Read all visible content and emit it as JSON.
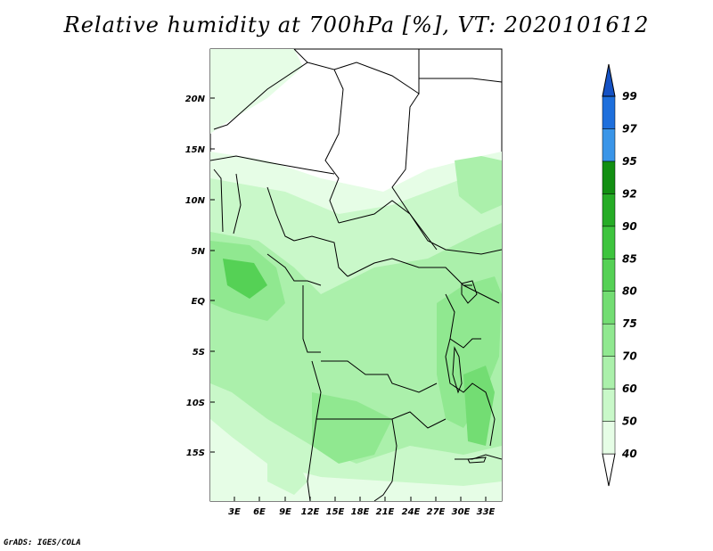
{
  "title": "Relative humidity at 700hPa [%], VT: 2020101612",
  "credit": "GrADS: IGES/COLA",
  "lat_labels": [
    "20N",
    "15N",
    "10N",
    "5N",
    "EQ",
    "5S",
    "10S",
    "15S"
  ],
  "lon_labels": [
    "3E",
    "6E",
    "9E",
    "12E",
    "15E",
    "18E",
    "21E",
    "24E",
    "27E",
    "30E",
    "33E"
  ],
  "colorbar": {
    "levels": [
      "40",
      "50",
      "60",
      "70",
      "75",
      "80",
      "85",
      "90",
      "92",
      "95",
      "97",
      "99"
    ],
    "colors": [
      "#ffffff",
      "#e6fde6",
      "#c9f8c9",
      "#abf0ab",
      "#90e890",
      "#73dd73",
      "#55d155",
      "#3ec43e",
      "#26ac26",
      "#128f12",
      "#3a95e8",
      "#1e6fdc",
      "#1552c4"
    ]
  },
  "map_colors": {
    "land_low": "#e6fde6",
    "mid": "#c9f8c9",
    "high": "#abf0ab",
    "higher": "#90e890",
    "peak": "#55d155",
    "border": "#000000"
  }
}
